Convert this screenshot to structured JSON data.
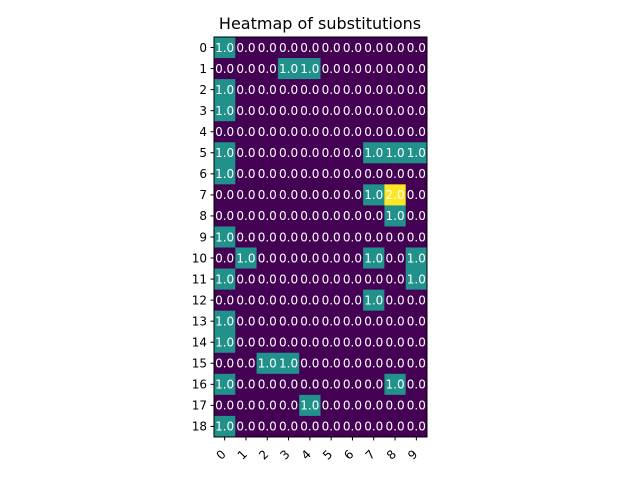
{
  "chart_data": {
    "type": "heatmap",
    "title": "Heatmap of substitutions",
    "x_categories": [
      "0",
      "1",
      "2",
      "3",
      "4",
      "5",
      "6",
      "7",
      "8",
      "9"
    ],
    "y_categories": [
      "0",
      "1",
      "2",
      "3",
      "4",
      "5",
      "6",
      "7",
      "8",
      "9",
      "10",
      "11",
      "12",
      "13",
      "14",
      "15",
      "16",
      "17",
      "18"
    ],
    "values": [
      [
        1,
        0,
        0,
        0,
        0,
        0,
        0,
        0,
        0,
        0
      ],
      [
        0,
        0,
        0,
        1,
        1,
        0,
        0,
        0,
        0,
        0
      ],
      [
        1,
        0,
        0,
        0,
        0,
        0,
        0,
        0,
        0,
        0
      ],
      [
        1,
        0,
        0,
        0,
        0,
        0,
        0,
        0,
        0,
        0
      ],
      [
        0,
        0,
        0,
        0,
        0,
        0,
        0,
        0,
        0,
        0
      ],
      [
        1,
        0,
        0,
        0,
        0,
        0,
        0,
        1,
        1,
        1
      ],
      [
        1,
        0,
        0,
        0,
        0,
        0,
        0,
        0,
        0,
        0
      ],
      [
        0,
        0,
        0,
        0,
        0,
        0,
        0,
        1,
        2,
        0
      ],
      [
        0,
        0,
        0,
        0,
        0,
        0,
        0,
        0,
        1,
        0
      ],
      [
        1,
        0,
        0,
        0,
        0,
        0,
        0,
        0,
        0,
        0
      ],
      [
        0,
        1,
        0,
        0,
        0,
        0,
        0,
        1,
        0,
        1
      ],
      [
        1,
        0,
        0,
        0,
        0,
        0,
        0,
        0,
        0,
        1
      ],
      [
        0,
        0,
        0,
        0,
        0,
        0,
        0,
        1,
        0,
        0
      ],
      [
        1,
        0,
        0,
        0,
        0,
        0,
        0,
        0,
        0,
        0
      ],
      [
        1,
        0,
        0,
        0,
        0,
        0,
        0,
        0,
        0,
        0
      ],
      [
        0,
        0,
        1,
        1,
        0,
        0,
        0,
        0,
        0,
        0
      ],
      [
        1,
        0,
        0,
        0,
        0,
        0,
        0,
        0,
        1,
        0
      ],
      [
        0,
        0,
        0,
        0,
        1,
        0,
        0,
        0,
        0,
        0
      ],
      [
        1,
        0,
        0,
        0,
        0,
        0,
        0,
        0,
        0,
        0
      ]
    ],
    "value_range": [
      0,
      2
    ],
    "value_format": "0.0",
    "colormap": "viridis",
    "colors": {
      "0": "#440154",
      "1": "#21918c",
      "2": "#fde725"
    },
    "x_tick_rotation_deg": 45,
    "grid": false,
    "legend": "none"
  }
}
